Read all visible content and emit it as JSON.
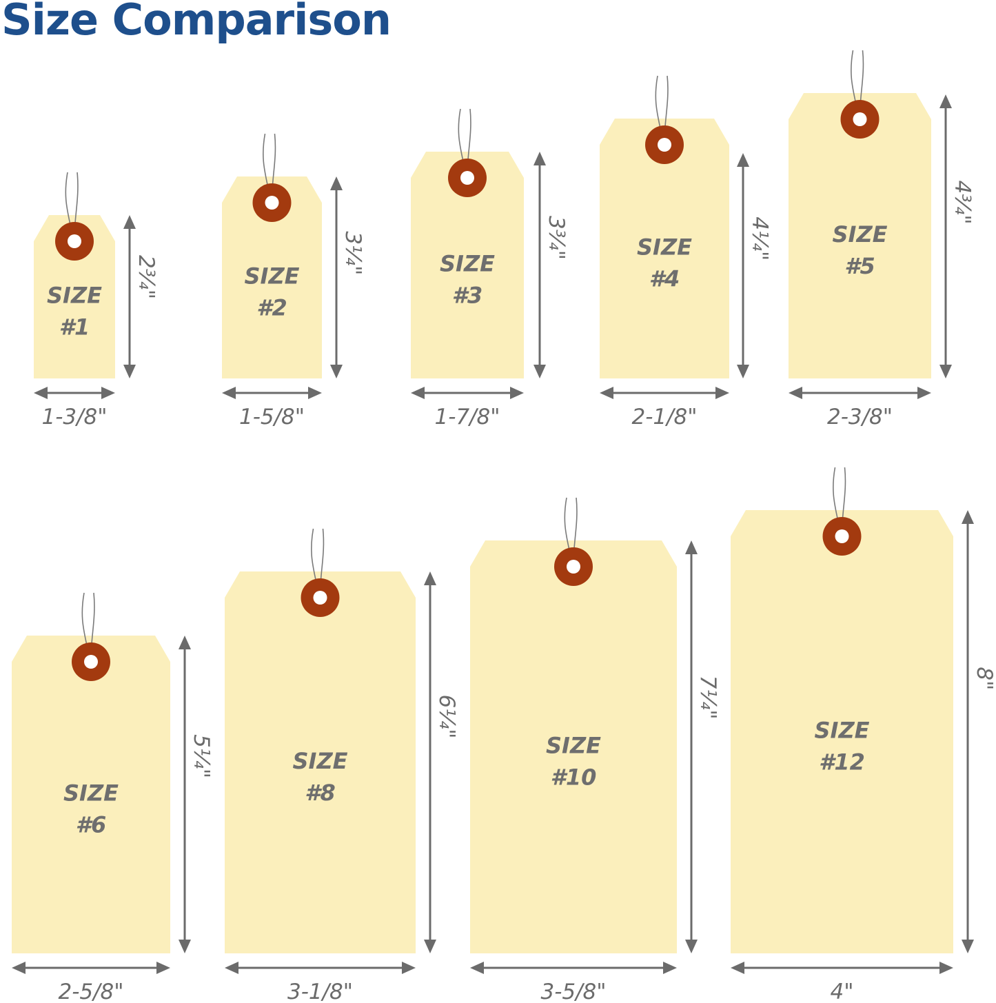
{
  "title": "Size Comparison",
  "colors": {
    "title": "#1e4f8c",
    "tag": "#fbefbc",
    "eyelet": "#a33a0f",
    "arrow": "#6b6b6b",
    "text": "#6b6b6b"
  },
  "tags": [
    {
      "size_label": "SIZE",
      "number": "#1",
      "height": "2¾\"",
      "width": "1-3/8\""
    },
    {
      "size_label": "SIZE",
      "number": "#2",
      "height": "3¼\"",
      "width": "1-5/8\""
    },
    {
      "size_label": "SIZE",
      "number": "#3",
      "height": "3¾\"",
      "width": "1-7/8\""
    },
    {
      "size_label": "SIZE",
      "number": "#4",
      "height": "4¼\"",
      "width": "2-1/8\""
    },
    {
      "size_label": "SIZE",
      "number": "#5",
      "height": "4¾\"",
      "width": "2-3/8\""
    },
    {
      "size_label": "SIZE",
      "number": "#6",
      "height": "5¼\"",
      "width": "2-5/8\""
    },
    {
      "size_label": "SIZE",
      "number": "#8",
      "height": "6¼\"",
      "width": "3-1/8\""
    },
    {
      "size_label": "SIZE",
      "number": "#10",
      "height": "7¼\"",
      "width": "3-5/8\""
    },
    {
      "size_label": "SIZE",
      "number": "#12",
      "height": "8\"",
      "width": "4\""
    }
  ]
}
